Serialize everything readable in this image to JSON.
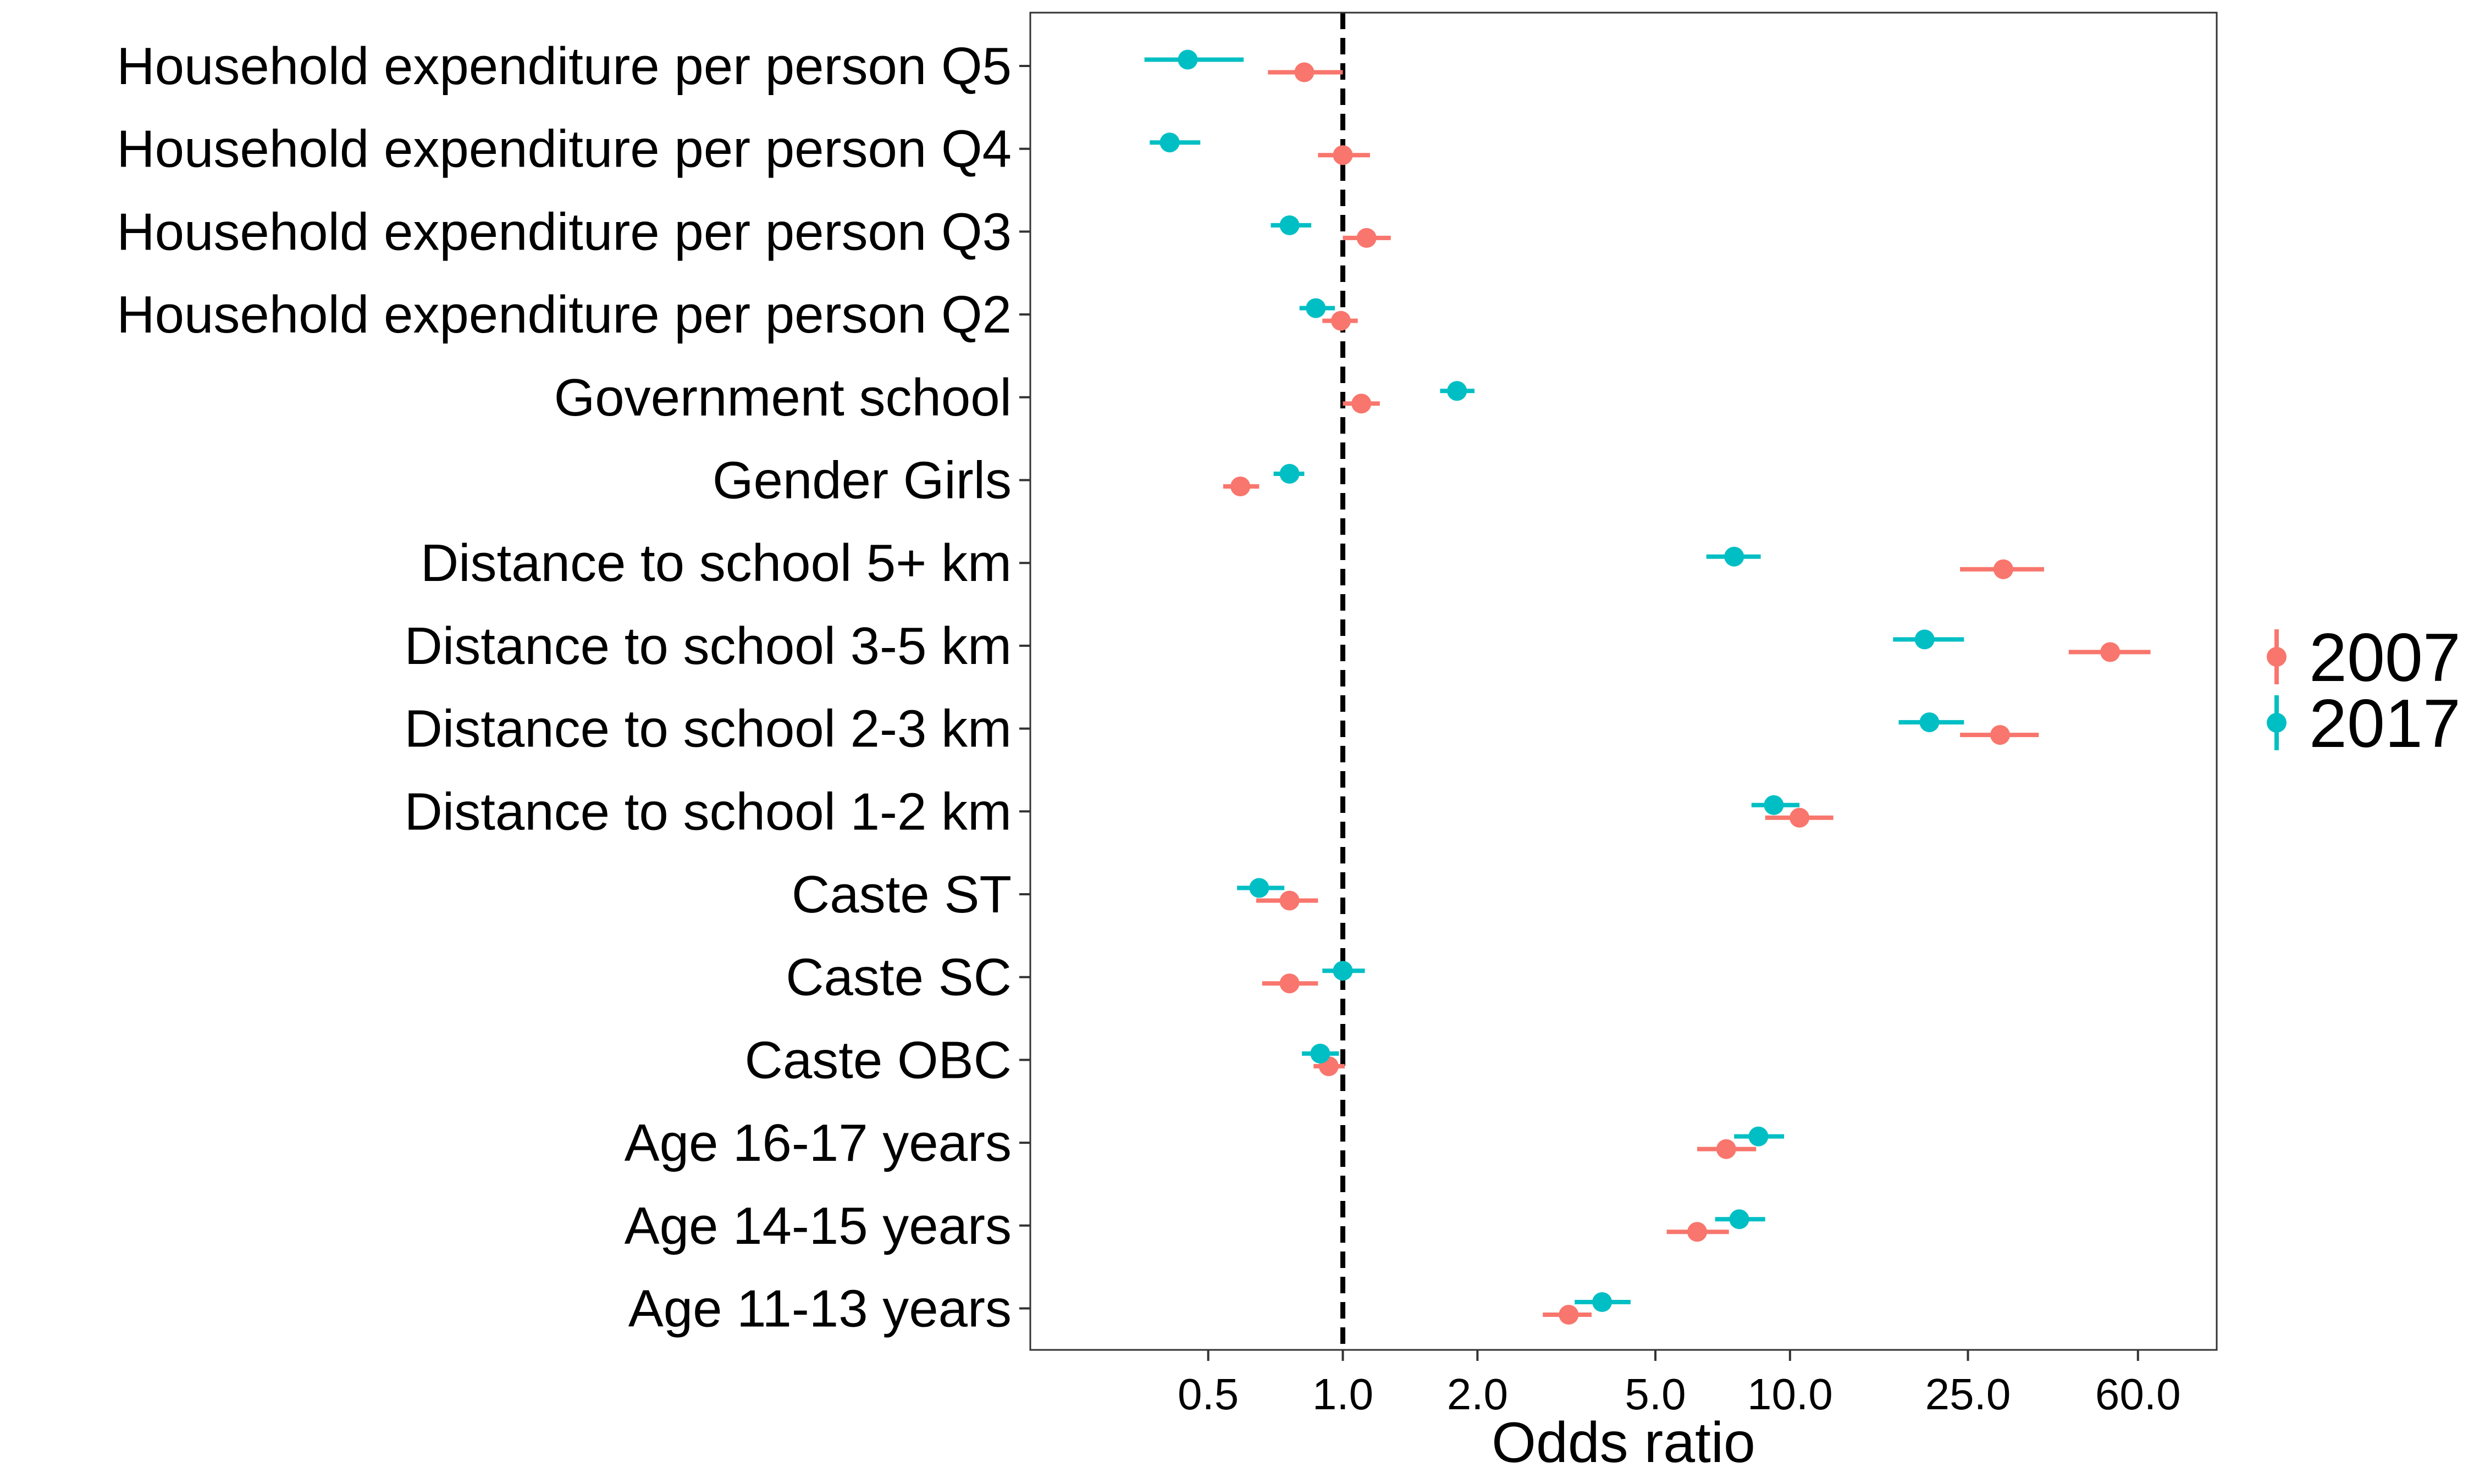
{
  "chart_data": {
    "type": "scatter",
    "subtype": "forest-plot",
    "title": "",
    "xlabel": "Odds ratio",
    "ylabel": "",
    "x_scale": "log",
    "xlim": [
      0.2,
      90
    ],
    "x_ticks": [
      0.5,
      1.0,
      2.0,
      5.0,
      10.0,
      25.0,
      60.0
    ],
    "x_tick_labels": [
      "0.5",
      "1.0",
      "2.0",
      "5.0",
      "10.0",
      "25.0",
      "60.0"
    ],
    "reference_line": 1.0,
    "grid": false,
    "legend_position": "right",
    "categories": [
      "Household expenditure per person Q5",
      "Household expenditure per person Q4",
      "Household expenditure per person Q3",
      "Household expenditure per person Q2",
      "Government school",
      "Gender Girls",
      "Distance to school 5+ km",
      "Distance to school 3-5 km",
      "Distance to school 2-3 km",
      "Distance to school 1-2 km",
      "Caste ST",
      "Caste SC",
      "Caste OBC",
      "Age 16-17 years",
      "Age 14-15 years",
      "Age 11-13 years"
    ],
    "series": [
      {
        "name": "2007",
        "color": "#F8766D",
        "estimate": [
          0.82,
          1.0,
          1.13,
          0.99,
          1.1,
          0.59,
          30.0,
          52.0,
          29.5,
          10.5,
          0.76,
          0.76,
          0.93,
          7.2,
          6.2,
          3.2
        ],
        "lower": [
          0.68,
          0.88,
          1.0,
          0.9,
          1.0,
          0.54,
          24.0,
          42.0,
          24.0,
          8.8,
          0.64,
          0.66,
          0.86,
          6.2,
          5.3,
          2.8
        ],
        "upper": [
          1.0,
          1.15,
          1.28,
          1.08,
          1.21,
          0.65,
          37.0,
          64.0,
          36.0,
          12.5,
          0.88,
          0.88,
          1.01,
          8.4,
          7.3,
          3.6
        ]
      },
      {
        "name": "2017",
        "color": "#00BFC4",
        "estimate": [
          0.45,
          0.41,
          0.76,
          0.87,
          1.8,
          0.76,
          7.5,
          20.0,
          20.5,
          9.2,
          0.65,
          1.0,
          0.89,
          8.5,
          7.7,
          3.8
        ],
        "lower": [
          0.36,
          0.37,
          0.69,
          0.8,
          1.65,
          0.7,
          6.5,
          17.0,
          17.5,
          8.2,
          0.58,
          0.9,
          0.81,
          7.5,
          6.8,
          3.3
        ],
        "upper": [
          0.6,
          0.48,
          0.85,
          0.96,
          1.97,
          0.82,
          8.6,
          24.5,
          24.5,
          10.5,
          0.74,
          1.12,
          0.98,
          9.7,
          8.8,
          4.4
        ]
      }
    ]
  }
}
